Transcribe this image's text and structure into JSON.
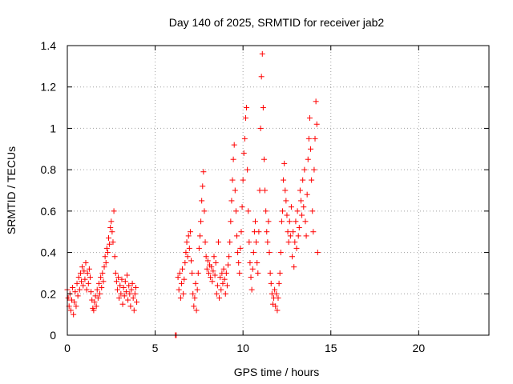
{
  "chart_data": {
    "type": "scatter",
    "title": "Day 140 of 2025, SRMTID for receiver jab2",
    "xlabel": "GPS time / hours",
    "ylabel": "SRMTID / TECUs",
    "xlim": [
      0,
      24
    ],
    "ylim": [
      0,
      1.4
    ],
    "x_ticks": [
      0,
      5,
      10,
      15,
      20
    ],
    "x_tick_labels": [
      "0",
      "5",
      "10",
      "15",
      "20"
    ],
    "y_ticks": [
      0,
      0.2,
      0.4,
      0.6,
      0.8,
      1,
      1.2,
      1.4
    ],
    "y_tick_labels": [
      "0",
      "0.2",
      "0.4",
      "0.6",
      "0.8",
      "1",
      "1.2",
      "1.4"
    ],
    "grid": true,
    "marker": "+",
    "color": "#ff0000",
    "series": [
      {
        "name": "SRMTID",
        "points": [
          [
            0.0,
            0.22
          ],
          [
            0.05,
            0.18
          ],
          [
            0.1,
            0.14
          ],
          [
            0.15,
            0.2
          ],
          [
            0.2,
            0.12
          ],
          [
            0.25,
            0.17
          ],
          [
            0.3,
            0.23
          ],
          [
            0.35,
            0.1
          ],
          [
            0.4,
            0.16
          ],
          [
            0.45,
            0.21
          ],
          [
            0.5,
            0.14
          ],
          [
            0.55,
            0.25
          ],
          [
            0.6,
            0.19
          ],
          [
            0.65,
            0.28
          ],
          [
            0.7,
            0.22
          ],
          [
            0.75,
            0.3
          ],
          [
            0.8,
            0.26
          ],
          [
            0.85,
            0.33
          ],
          [
            0.9,
            0.24
          ],
          [
            0.95,
            0.31
          ],
          [
            1.0,
            0.27
          ],
          [
            1.05,
            0.35
          ],
          [
            1.1,
            0.22
          ],
          [
            1.15,
            0.3
          ],
          [
            1.2,
            0.25
          ],
          [
            1.25,
            0.32
          ],
          [
            1.3,
            0.28
          ],
          [
            1.35,
            0.21
          ],
          [
            1.4,
            0.17
          ],
          [
            1.45,
            0.13
          ],
          [
            1.5,
            0.12
          ],
          [
            1.55,
            0.16
          ],
          [
            1.6,
            0.19
          ],
          [
            1.65,
            0.14
          ],
          [
            1.7,
            0.22
          ],
          [
            1.75,
            0.18
          ],
          [
            1.8,
            0.25
          ],
          [
            1.85,
            0.2
          ],
          [
            1.9,
            0.28
          ],
          [
            1.95,
            0.23
          ],
          [
            2.0,
            0.3
          ],
          [
            2.05,
            0.26
          ],
          [
            2.1,
            0.33
          ],
          [
            2.15,
            0.38
          ],
          [
            2.2,
            0.35
          ],
          [
            2.25,
            0.42
          ],
          [
            2.3,
            0.4
          ],
          [
            2.35,
            0.47
          ],
          [
            2.4,
            0.44
          ],
          [
            2.45,
            0.52
          ],
          [
            2.5,
            0.55
          ],
          [
            2.55,
            0.5
          ],
          [
            2.6,
            0.45
          ],
          [
            2.65,
            0.6
          ],
          [
            2.7,
            0.38
          ],
          [
            2.75,
            0.3
          ],
          [
            2.8,
            0.26
          ],
          [
            2.85,
            0.22
          ],
          [
            2.9,
            0.28
          ],
          [
            2.95,
            0.18
          ],
          [
            3.0,
            0.24
          ],
          [
            3.05,
            0.2
          ],
          [
            3.1,
            0.27
          ],
          [
            3.15,
            0.15
          ],
          [
            3.2,
            0.23
          ],
          [
            3.25,
            0.19
          ],
          [
            3.3,
            0.26
          ],
          [
            3.35,
            0.21
          ],
          [
            3.4,
            0.29
          ],
          [
            3.45,
            0.17
          ],
          [
            3.5,
            0.24
          ],
          [
            3.55,
            0.2
          ],
          [
            3.6,
            0.14
          ],
          [
            3.65,
            0.22
          ],
          [
            3.7,
            0.25
          ],
          [
            3.75,
            0.18
          ],
          [
            3.8,
            0.12
          ],
          [
            3.85,
            0.2
          ],
          [
            3.9,
            0.23
          ],
          [
            3.95,
            0.16
          ],
          [
            6.15,
            0.0
          ],
          [
            6.2,
            0.0
          ],
          [
            6.3,
            0.28
          ],
          [
            6.35,
            0.22
          ],
          [
            6.4,
            0.3
          ],
          [
            6.45,
            0.18
          ],
          [
            6.5,
            0.25
          ],
          [
            6.55,
            0.32
          ],
          [
            6.6,
            0.2
          ],
          [
            6.65,
            0.27
          ],
          [
            6.7,
            0.35
          ],
          [
            6.75,
            0.4
          ],
          [
            6.8,
            0.45
          ],
          [
            6.85,
            0.38
          ],
          [
            6.9,
            0.48
          ],
          [
            6.95,
            0.42
          ],
          [
            7.0,
            0.5
          ],
          [
            7.05,
            0.36
          ],
          [
            7.1,
            0.3
          ],
          [
            7.15,
            0.2
          ],
          [
            7.2,
            0.14
          ],
          [
            7.25,
            0.18
          ],
          [
            7.3,
            0.25
          ],
          [
            7.35,
            0.12
          ],
          [
            7.4,
            0.22
          ],
          [
            7.45,
            0.3
          ],
          [
            7.5,
            0.42
          ],
          [
            7.55,
            0.48
          ],
          [
            7.6,
            0.55
          ],
          [
            7.65,
            0.65
          ],
          [
            7.7,
            0.72
          ],
          [
            7.75,
            0.79
          ],
          [
            7.8,
            0.6
          ],
          [
            7.85,
            0.45
          ],
          [
            7.9,
            0.38
          ],
          [
            7.95,
            0.32
          ],
          [
            8.0,
            0.36
          ],
          [
            8.05,
            0.3
          ],
          [
            8.1,
            0.34
          ],
          [
            8.15,
            0.28
          ],
          [
            8.2,
            0.33
          ],
          [
            8.25,
            0.26
          ],
          [
            8.3,
            0.31
          ],
          [
            8.35,
            0.38
          ],
          [
            8.4,
            0.29
          ],
          [
            8.45,
            0.35
          ],
          [
            8.5,
            0.2
          ],
          [
            8.55,
            0.24
          ],
          [
            8.6,
            0.45
          ],
          [
            8.65,
            0.18
          ],
          [
            8.7,
            0.28
          ],
          [
            8.75,
            0.22
          ],
          [
            8.8,
            0.3
          ],
          [
            8.85,
            0.25
          ],
          [
            8.9,
            0.32
          ],
          [
            8.95,
            0.27
          ],
          [
            9.0,
            0.2
          ],
          [
            9.05,
            0.3
          ],
          [
            9.1,
            0.24
          ],
          [
            9.15,
            0.34
          ],
          [
            9.2,
            0.38
          ],
          [
            9.25,
            0.45
          ],
          [
            9.3,
            0.55
          ],
          [
            9.35,
            0.65
          ],
          [
            9.4,
            0.75
          ],
          [
            9.45,
            0.85
          ],
          [
            9.5,
            0.92
          ],
          [
            9.55,
            0.7
          ],
          [
            9.6,
            0.6
          ],
          [
            9.65,
            0.48
          ],
          [
            9.7,
            0.4
          ],
          [
            9.75,
            0.35
          ],
          [
            9.8,
            0.3
          ],
          [
            9.85,
            0.42
          ],
          [
            9.9,
            0.5
          ],
          [
            9.95,
            0.62
          ],
          [
            10.0,
            0.75
          ],
          [
            10.05,
            0.88
          ],
          [
            10.1,
            0.95
          ],
          [
            10.15,
            1.05
          ],
          [
            10.2,
            1.1
          ],
          [
            10.25,
            0.8
          ],
          [
            10.3,
            0.6
          ],
          [
            10.35,
            0.45
          ],
          [
            10.4,
            0.35
          ],
          [
            10.45,
            0.28
          ],
          [
            10.5,
            0.22
          ],
          [
            10.55,
            0.32
          ],
          [
            10.6,
            0.4
          ],
          [
            10.65,
            0.5
          ],
          [
            10.7,
            0.55
          ],
          [
            10.75,
            0.45
          ],
          [
            10.8,
            0.35
          ],
          [
            10.85,
            0.3
          ],
          [
            10.9,
            0.5
          ],
          [
            10.95,
            0.7
          ],
          [
            11.0,
            1.0
          ],
          [
            11.05,
            1.25
          ],
          [
            11.1,
            1.36
          ],
          [
            11.15,
            1.1
          ],
          [
            11.2,
            0.85
          ],
          [
            11.25,
            0.7
          ],
          [
            11.3,
            0.6
          ],
          [
            11.35,
            0.5
          ],
          [
            11.4,
            0.45
          ],
          [
            11.45,
            0.55
          ],
          [
            11.5,
            0.4
          ],
          [
            11.55,
            0.3
          ],
          [
            11.6,
            0.25
          ],
          [
            11.65,
            0.2
          ],
          [
            11.7,
            0.15
          ],
          [
            11.75,
            0.18
          ],
          [
            11.8,
            0.22
          ],
          [
            11.85,
            0.14
          ],
          [
            11.9,
            0.2
          ],
          [
            11.95,
            0.12
          ],
          [
            12.0,
            0.18
          ],
          [
            12.05,
            0.25
          ],
          [
            12.1,
            0.3
          ],
          [
            12.15,
            0.4
          ],
          [
            12.2,
            0.55
          ],
          [
            12.25,
            0.6
          ],
          [
            12.3,
            0.75
          ],
          [
            12.35,
            0.83
          ],
          [
            12.4,
            0.7
          ],
          [
            12.45,
            0.65
          ],
          [
            12.5,
            0.58
          ],
          [
            12.55,
            0.5
          ],
          [
            12.6,
            0.45
          ],
          [
            12.65,
            0.55
          ],
          [
            12.7,
            0.48
          ],
          [
            12.75,
            0.62
          ],
          [
            12.8,
            0.38
          ],
          [
            12.85,
            0.5
          ],
          [
            12.9,
            0.33
          ],
          [
            12.95,
            0.45
          ],
          [
            13.0,
            0.55
          ],
          [
            13.05,
            0.42
          ],
          [
            13.1,
            0.6
          ],
          [
            13.15,
            0.48
          ],
          [
            13.2,
            0.52
          ],
          [
            13.25,
            0.7
          ],
          [
            13.3,
            0.65
          ],
          [
            13.35,
            0.58
          ],
          [
            13.4,
            0.75
          ],
          [
            13.45,
            0.62
          ],
          [
            13.5,
            0.8
          ],
          [
            13.55,
            0.55
          ],
          [
            13.6,
            0.48
          ],
          [
            13.65,
            0.68
          ],
          [
            13.7,
            0.85
          ],
          [
            13.75,
            0.95
          ],
          [
            13.8,
            1.05
          ],
          [
            13.85,
            0.9
          ],
          [
            13.9,
            0.75
          ],
          [
            13.95,
            0.6
          ],
          [
            14.0,
            0.5
          ],
          [
            14.05,
            0.8
          ],
          [
            14.1,
            0.95
          ],
          [
            14.15,
            1.13
          ],
          [
            14.2,
            1.02
          ],
          [
            14.25,
            0.4
          ]
        ]
      }
    ]
  }
}
